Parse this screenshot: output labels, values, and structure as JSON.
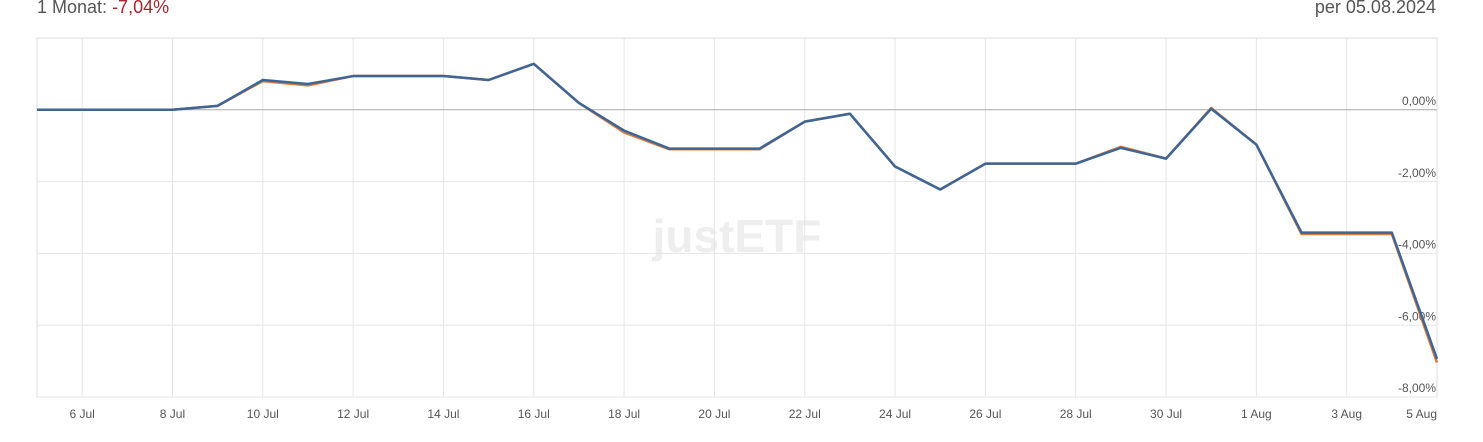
{
  "chart_data": {
    "type": "line",
    "title": "1 Monat:",
    "title_value": "-7,04%",
    "subtitle": "per 05.08.2024",
    "watermark": "justETF",
    "categories": [
      null,
      "6 Jul",
      null,
      "8 Jul",
      null,
      "10 Jul",
      null,
      "12 Jul",
      null,
      "14 Jul",
      null,
      "16 Jul",
      null,
      "18 Jul",
      null,
      "20 Jul",
      null,
      "22 Jul",
      null,
      "24 Jul",
      null,
      "26 Jul",
      null,
      "28 Jul",
      null,
      "30 Jul",
      null,
      "1 Aug",
      null,
      "3 Aug",
      null,
      "5 Aug"
    ],
    "series": [
      {
        "color": "#e07b39",
        "values": [
          0,
          0,
          0,
          0,
          0.11,
          0.8,
          0.68,
          0.94,
          0.94,
          0.94,
          0.83,
          1.28,
          0.19,
          -0.63,
          -1.1,
          -1.1,
          -1.1,
          -0.33,
          -0.11,
          -1.58,
          -2.22,
          -1.5,
          -1.5,
          -1.5,
          -1.03,
          -1.36,
          0.05,
          -0.97,
          -3.46,
          -3.46,
          -3.46,
          -7.04
        ]
      },
      {
        "color": "#3d6596",
        "values": [
          0,
          0,
          0,
          0,
          0.11,
          0.83,
          0.72,
          0.94,
          0.94,
          0.94,
          0.83,
          1.28,
          0.19,
          -0.58,
          -1.08,
          -1.08,
          -1.08,
          -0.33,
          -0.11,
          -1.58,
          -2.22,
          -1.5,
          -1.5,
          -1.5,
          -1.06,
          -1.36,
          0.03,
          -0.97,
          -3.42,
          -3.42,
          -3.42,
          -6.94
        ]
      }
    ],
    "ylim": [
      -8,
      2
    ],
    "yticks": [
      {
        "value": 0,
        "label": "0,00%"
      },
      {
        "value": -2,
        "label": "-2,00%"
      },
      {
        "value": -4,
        "label": "-4,00%"
      },
      {
        "value": -6,
        "label": "-6,00%"
      },
      {
        "value": -8,
        "label": "-8,00%"
      }
    ],
    "grid": true
  }
}
